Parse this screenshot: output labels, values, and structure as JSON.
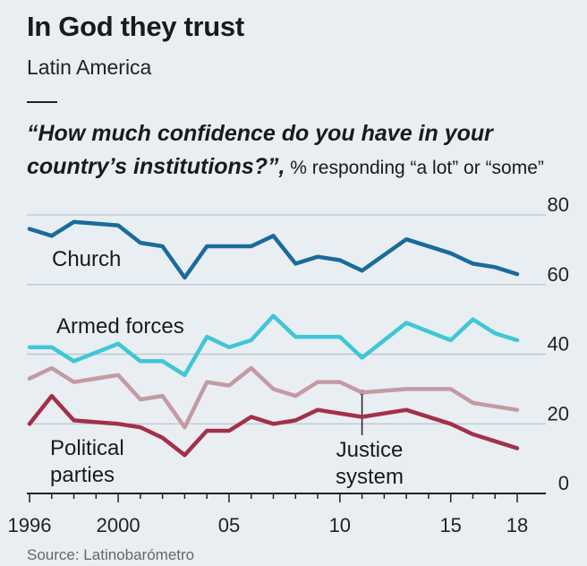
{
  "header": {
    "title": "In God they trust",
    "subtitle": "Latin America",
    "question_main": "“How much confidence do you have in your country’s institutions?”,",
    "question_aside": " % responding “a lot” or “some”"
  },
  "source": "Source: Latinobarómetro",
  "colors": {
    "church": "#1b6a9c",
    "armed_forces": "#3ec7d6",
    "justice_system": "#c49aa2",
    "political_parties": "#a3304a",
    "gridline": "#b8c4cf",
    "axis": "#222222"
  },
  "chart_data": {
    "type": "line",
    "title": "In God they trust",
    "subtitle": "Latin America",
    "x_tick_labels": [
      "1996",
      "2000",
      "05",
      "10",
      "15",
      "18"
    ],
    "x_ticks": [
      1996,
      2000,
      2005,
      2010,
      2015,
      2018
    ],
    "y_tick_labels": [
      "80",
      "60",
      "40",
      "20",
      "0"
    ],
    "y_ticks": [
      80,
      60,
      40,
      20,
      0
    ],
    "ylim": [
      0,
      80
    ],
    "xlim": [
      1996,
      2018
    ],
    "grid": true,
    "x": [
      1996,
      1997,
      1998,
      2000,
      2001,
      2002,
      2003,
      2004,
      2005,
      2006,
      2007,
      2008,
      2009,
      2010,
      2011,
      2013,
      2015,
      2016,
      2017,
      2018
    ],
    "series": [
      {
        "name": "Church",
        "key": "church",
        "label_lines": [
          "Church"
        ],
        "values": [
          76,
          74,
          78,
          77,
          72,
          71,
          62,
          71,
          71,
          71,
          74,
          66,
          68,
          67,
          64,
          73,
          69,
          66,
          65,
          63
        ]
      },
      {
        "name": "Armed forces",
        "key": "armed_forces",
        "label_lines": [
          "Armed forces"
        ],
        "values": [
          42,
          42,
          38,
          43,
          38,
          38,
          34,
          45,
          42,
          44,
          51,
          45,
          45,
          45,
          39,
          49,
          44,
          50,
          46,
          44
        ]
      },
      {
        "name": "Justice system",
        "key": "justice_system",
        "label_lines": [
          "Justice",
          "system"
        ],
        "values": [
          33,
          36,
          32,
          34,
          27,
          28,
          19,
          32,
          31,
          36,
          30,
          28,
          32,
          32,
          29,
          30,
          30,
          26,
          25,
          24
        ]
      },
      {
        "name": "Political parties",
        "key": "political_parties",
        "label_lines": [
          "Political",
          "parties"
        ],
        "values": [
          20,
          28,
          21,
          20,
          19,
          16,
          11,
          18,
          18,
          22,
          20,
          21,
          24,
          23,
          22,
          24,
          20,
          17,
          15,
          13
        ]
      }
    ],
    "annotations": [
      {
        "series": "Justice system",
        "x": 2011
      }
    ]
  }
}
